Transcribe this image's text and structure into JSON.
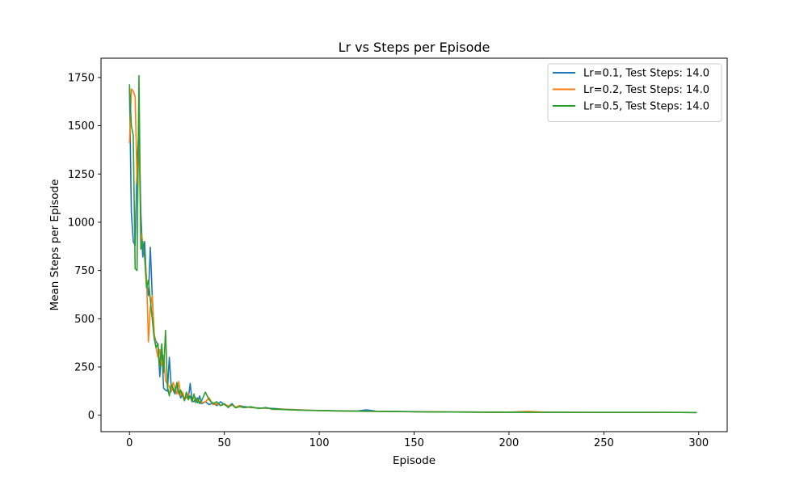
{
  "chart_data": {
    "type": "line",
    "title": "Lr vs Steps per Episode",
    "xlabel": "Episode",
    "ylabel": "Mean Steps per Episode",
    "xlim": [
      -15,
      315
    ],
    "ylim": [
      -85,
      1850
    ],
    "xticks": [
      0,
      50,
      100,
      150,
      200,
      250,
      300
    ],
    "yticks": [
      0,
      250,
      500,
      750,
      1000,
      1250,
      1500,
      1750
    ],
    "grid": false,
    "legend_position": "top-right",
    "series": [
      {
        "name": "Lr=0.1, Test Steps: 14.0",
        "color": "#1f77b4",
        "points": [
          [
            0,
            1700
          ],
          [
            1,
            1050
          ],
          [
            2,
            900
          ],
          [
            3,
            880
          ],
          [
            4,
            1300
          ],
          [
            5,
            1490
          ],
          [
            6,
            1050
          ],
          [
            7,
            820
          ],
          [
            8,
            900
          ],
          [
            9,
            680
          ],
          [
            10,
            620
          ],
          [
            11,
            870
          ],
          [
            12,
            620
          ],
          [
            13,
            420
          ],
          [
            14,
            380
          ],
          [
            15,
            370
          ],
          [
            16,
            200
          ],
          [
            17,
            350
          ],
          [
            18,
            140
          ],
          [
            19,
            130
          ],
          [
            20,
            125
          ],
          [
            21,
            300
          ],
          [
            22,
            150
          ],
          [
            23,
            130
          ],
          [
            24,
            110
          ],
          [
            25,
            160
          ],
          [
            26,
            120
          ],
          [
            27,
            90
          ],
          [
            28,
            110
          ],
          [
            29,
            80
          ],
          [
            30,
            95
          ],
          [
            31,
            85
          ],
          [
            32,
            165
          ],
          [
            33,
            75
          ],
          [
            34,
            70
          ],
          [
            35,
            90
          ],
          [
            36,
            65
          ],
          [
            37,
            100
          ],
          [
            38,
            60
          ],
          [
            40,
            70
          ],
          [
            42,
            55
          ],
          [
            44,
            65
          ],
          [
            46,
            50
          ],
          [
            48,
            70
          ],
          [
            50,
            55
          ],
          [
            52,
            45
          ],
          [
            54,
            60
          ],
          [
            56,
            40
          ],
          [
            58,
            50
          ],
          [
            60,
            45
          ],
          [
            64,
            40
          ],
          [
            68,
            38
          ],
          [
            72,
            36
          ],
          [
            76,
            35
          ],
          [
            80,
            32
          ],
          [
            85,
            30
          ],
          [
            90,
            28
          ],
          [
            95,
            26
          ],
          [
            100,
            25
          ],
          [
            110,
            23
          ],
          [
            120,
            22
          ],
          [
            125,
            28
          ],
          [
            130,
            21
          ],
          [
            140,
            20
          ],
          [
            150,
            19
          ],
          [
            160,
            18
          ],
          [
            170,
            17
          ],
          [
            180,
            17
          ],
          [
            190,
            16
          ],
          [
            200,
            16
          ],
          [
            220,
            16
          ],
          [
            240,
            15
          ],
          [
            260,
            15
          ],
          [
            280,
            15
          ],
          [
            299,
            14
          ]
        ]
      },
      {
        "name": "Lr=0.2, Test Steps: 14.0",
        "color": "#ff7f0e",
        "points": [
          [
            0,
            1410
          ],
          [
            1,
            1690
          ],
          [
            2,
            1680
          ],
          [
            3,
            1650
          ],
          [
            4,
            1200
          ],
          [
            5,
            1400
          ],
          [
            6,
            950
          ],
          [
            7,
            900
          ],
          [
            8,
            820
          ],
          [
            9,
            720
          ],
          [
            10,
            380
          ],
          [
            11,
            560
          ],
          [
            12,
            620
          ],
          [
            13,
            430
          ],
          [
            14,
            350
          ],
          [
            15,
            300
          ],
          [
            16,
            340
          ],
          [
            17,
            260
          ],
          [
            18,
            310
          ],
          [
            19,
            180
          ],
          [
            20,
            160
          ],
          [
            21,
            150
          ],
          [
            22,
            120
          ],
          [
            23,
            170
          ],
          [
            24,
            140
          ],
          [
            25,
            110
          ],
          [
            26,
            175
          ],
          [
            27,
            100
          ],
          [
            28,
            120
          ],
          [
            29,
            85
          ],
          [
            30,
            90
          ],
          [
            31,
            110
          ],
          [
            32,
            95
          ],
          [
            33,
            70
          ],
          [
            34,
            100
          ],
          [
            35,
            80
          ],
          [
            36,
            75
          ],
          [
            38,
            65
          ],
          [
            40,
            70
          ],
          [
            42,
            90
          ],
          [
            44,
            55
          ],
          [
            46,
            60
          ],
          [
            48,
            50
          ],
          [
            50,
            58
          ],
          [
            52,
            48
          ],
          [
            54,
            55
          ],
          [
            56,
            42
          ],
          [
            58,
            50
          ],
          [
            60,
            40
          ],
          [
            64,
            42
          ],
          [
            68,
            36
          ],
          [
            72,
            38
          ],
          [
            76,
            30
          ],
          [
            80,
            32
          ],
          [
            85,
            29
          ],
          [
            90,
            27
          ],
          [
            95,
            26
          ],
          [
            100,
            24
          ],
          [
            110,
            22
          ],
          [
            120,
            21
          ],
          [
            130,
            20
          ],
          [
            140,
            19
          ],
          [
            150,
            18
          ],
          [
            160,
            18
          ],
          [
            170,
            17
          ],
          [
            180,
            17
          ],
          [
            190,
            16
          ],
          [
            200,
            16
          ],
          [
            210,
            20
          ],
          [
            220,
            16
          ],
          [
            240,
            15
          ],
          [
            260,
            15
          ],
          [
            280,
            15
          ],
          [
            299,
            14
          ]
        ]
      },
      {
        "name": "Lr=0.5, Test Steps: 14.0",
        "color": "#2ca02c",
        "points": [
          [
            0,
            1715
          ],
          [
            1,
            1500
          ],
          [
            2,
            1450
          ],
          [
            3,
            760
          ],
          [
            4,
            750
          ],
          [
            5,
            1760
          ],
          [
            6,
            860
          ],
          [
            7,
            900
          ],
          [
            8,
            820
          ],
          [
            9,
            660
          ],
          [
            10,
            700
          ],
          [
            11,
            600
          ],
          [
            12,
            500
          ],
          [
            13,
            400
          ],
          [
            14,
            350
          ],
          [
            15,
            370
          ],
          [
            16,
            250
          ],
          [
            17,
            370
          ],
          [
            18,
            220
          ],
          [
            19,
            440
          ],
          [
            20,
            150
          ],
          [
            21,
            100
          ],
          [
            22,
            160
          ],
          [
            23,
            140
          ],
          [
            24,
            120
          ],
          [
            25,
            170
          ],
          [
            26,
            110
          ],
          [
            27,
            130
          ],
          [
            28,
            100
          ],
          [
            29,
            75
          ],
          [
            30,
            120
          ],
          [
            31,
            80
          ],
          [
            32,
            100
          ],
          [
            33,
            70
          ],
          [
            34,
            110
          ],
          [
            35,
            65
          ],
          [
            36,
            90
          ],
          [
            37,
            60
          ],
          [
            38,
            75
          ],
          [
            40,
            120
          ],
          [
            42,
            80
          ],
          [
            44,
            60
          ],
          [
            46,
            70
          ],
          [
            48,
            50
          ],
          [
            50,
            60
          ],
          [
            52,
            40
          ],
          [
            54,
            55
          ],
          [
            56,
            38
          ],
          [
            58,
            45
          ],
          [
            60,
            40
          ],
          [
            64,
            44
          ],
          [
            68,
            35
          ],
          [
            72,
            40
          ],
          [
            75,
            32
          ],
          [
            80,
            30
          ],
          [
            85,
            28
          ],
          [
            90,
            26
          ],
          [
            95,
            25
          ],
          [
            100,
            24
          ],
          [
            110,
            22
          ],
          [
            120,
            21
          ],
          [
            130,
            20
          ],
          [
            140,
            19
          ],
          [
            150,
            18
          ],
          [
            160,
            17
          ],
          [
            170,
            17
          ],
          [
            180,
            16
          ],
          [
            190,
            16
          ],
          [
            200,
            16
          ],
          [
            220,
            15
          ],
          [
            240,
            15
          ],
          [
            260,
            15
          ],
          [
            280,
            15
          ],
          [
            299,
            14
          ]
        ]
      }
    ]
  }
}
